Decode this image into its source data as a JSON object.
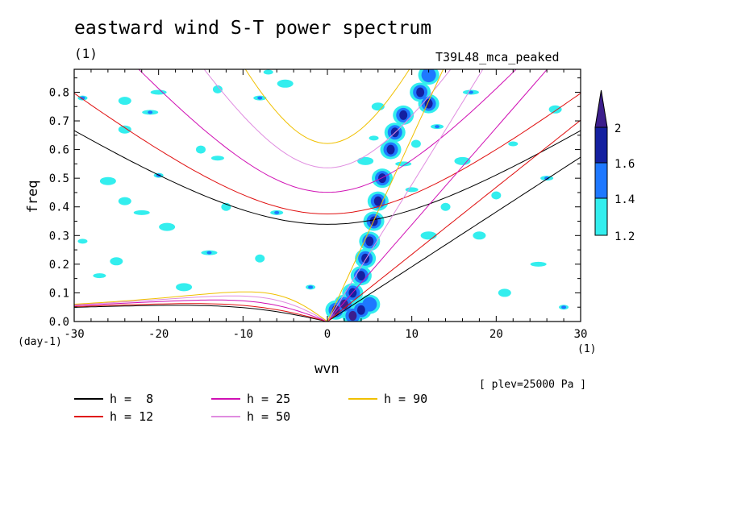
{
  "title": "eastward wind S-T power spectrum",
  "subtitle": "(1)",
  "run_label": "T39L48_mca_peaked",
  "x_unit": "(1)",
  "y_unit": "(day-1)",
  "note": "[ plev=25000 Pa ]",
  "chart_data": {
    "type": "contour",
    "xlabel": "wvn",
    "ylabel": "freq",
    "xlim": [
      -30,
      30
    ],
    "ylim": [
      0,
      0.88
    ],
    "x_ticks": [
      -30,
      -20,
      -10,
      0,
      10,
      20,
      30
    ],
    "x_tick_labels": [
      "-30",
      "-20",
      "-10",
      "0",
      "10",
      "20",
      "30"
    ],
    "y_ticks": [
      0.0,
      0.1,
      0.2,
      0.3,
      0.4,
      0.5,
      0.6,
      0.7,
      0.8
    ],
    "y_tick_labels": [
      "0.0",
      "0.1",
      "0.2",
      "0.3",
      "0.4",
      "0.5",
      "0.6",
      "0.7",
      "0.8"
    ],
    "colorbar": {
      "levels": [
        1.2,
        1.4,
        1.6,
        2
      ],
      "labels": [
        "1.2",
        "1.4",
        "1.6",
        "2"
      ],
      "colors": [
        "#33eeee",
        "#1e78ff",
        "#1420a0",
        "#3c1e8c"
      ]
    },
    "dispersion_curves": [
      {
        "name": "h =  8",
        "h": 8,
        "color": "#000000"
      },
      {
        "name": "h = 12",
        "h": 12,
        "color": "#e01010"
      },
      {
        "name": "h = 25",
        "h": 25,
        "color": "#d010b4"
      },
      {
        "name": "h = 50",
        "h": 50,
        "color": "#e08ce0"
      },
      {
        "name": "h = 90",
        "h": 90,
        "color": "#f0c000"
      }
    ],
    "contours": {
      "kelvin_ridge": [
        {
          "x": 1,
          "y": 0.04,
          "level": 2
        },
        {
          "x": 2,
          "y": 0.06,
          "level": 2
        },
        {
          "x": 3,
          "y": 0.1,
          "level": 1.6
        },
        {
          "x": 4,
          "y": 0.16,
          "level": 1.6
        },
        {
          "x": 4.5,
          "y": 0.22,
          "level": 1.6
        },
        {
          "x": 5,
          "y": 0.28,
          "level": 1.6
        },
        {
          "x": 5.5,
          "y": 0.35,
          "level": 1.6
        },
        {
          "x": 6,
          "y": 0.42,
          "level": 1.6
        },
        {
          "x": 6.5,
          "y": 0.5,
          "level": 1.6
        },
        {
          "x": 7.5,
          "y": 0.6,
          "level": 1.6
        },
        {
          "x": 8,
          "y": 0.66,
          "level": 1.6
        },
        {
          "x": 9,
          "y": 0.72,
          "level": 1.6
        },
        {
          "x": 12,
          "y": 0.76,
          "level": 1.6
        },
        {
          "x": 11,
          "y": 0.8,
          "level": 1.6
        },
        {
          "x": 12,
          "y": 0.86,
          "level": 1.4
        },
        {
          "x": 3,
          "y": 0.02,
          "level": 2
        },
        {
          "x": 4,
          "y": 0.04,
          "level": 1.6
        },
        {
          "x": 5,
          "y": 0.06,
          "level": 1.4
        }
      ],
      "scattered": [
        {
          "x": -29,
          "y": 0.78
        },
        {
          "x": -24,
          "y": 0.77
        },
        {
          "x": -20,
          "y": 0.8
        },
        {
          "x": -13,
          "y": 0.81
        },
        {
          "x": -8,
          "y": 0.78
        },
        {
          "x": -5,
          "y": 0.83
        },
        {
          "x": -7,
          "y": 0.87
        },
        {
          "x": -24,
          "y": 0.67
        },
        {
          "x": -21,
          "y": 0.73
        },
        {
          "x": -15,
          "y": 0.6
        },
        {
          "x": -13,
          "y": 0.57
        },
        {
          "x": -26,
          "y": 0.49
        },
        {
          "x": -20,
          "y": 0.51
        },
        {
          "x": -24,
          "y": 0.42
        },
        {
          "x": -22,
          "y": 0.38
        },
        {
          "x": -12,
          "y": 0.4
        },
        {
          "x": -6,
          "y": 0.38
        },
        {
          "x": -19,
          "y": 0.33
        },
        {
          "x": -29,
          "y": 0.28
        },
        {
          "x": -25,
          "y": 0.21
        },
        {
          "x": -14,
          "y": 0.24
        },
        {
          "x": -8,
          "y": 0.22
        },
        {
          "x": -27,
          "y": 0.16
        },
        {
          "x": -17,
          "y": 0.12
        },
        {
          "x": -2,
          "y": 0.12
        },
        {
          "x": 18,
          "y": 0.3
        },
        {
          "x": 25,
          "y": 0.2
        },
        {
          "x": 20,
          "y": 0.44
        },
        {
          "x": 26,
          "y": 0.5
        },
        {
          "x": 16,
          "y": 0.56
        },
        {
          "x": 22,
          "y": 0.62
        },
        {
          "x": 27,
          "y": 0.74
        },
        {
          "x": 17,
          "y": 0.8
        },
        {
          "x": 14,
          "y": 0.4
        },
        {
          "x": 10,
          "y": 0.46
        },
        {
          "x": 12,
          "y": 0.3
        },
        {
          "x": 28,
          "y": 0.05
        },
        {
          "x": 21,
          "y": 0.1
        },
        {
          "x": 9,
          "y": 0.55
        },
        {
          "x": 10.5,
          "y": 0.62
        },
        {
          "x": 13,
          "y": 0.68
        },
        {
          "x": 4.5,
          "y": 0.56
        },
        {
          "x": 5.5,
          "y": 0.64
        },
        {
          "x": 6,
          "y": 0.75
        }
      ]
    }
  }
}
